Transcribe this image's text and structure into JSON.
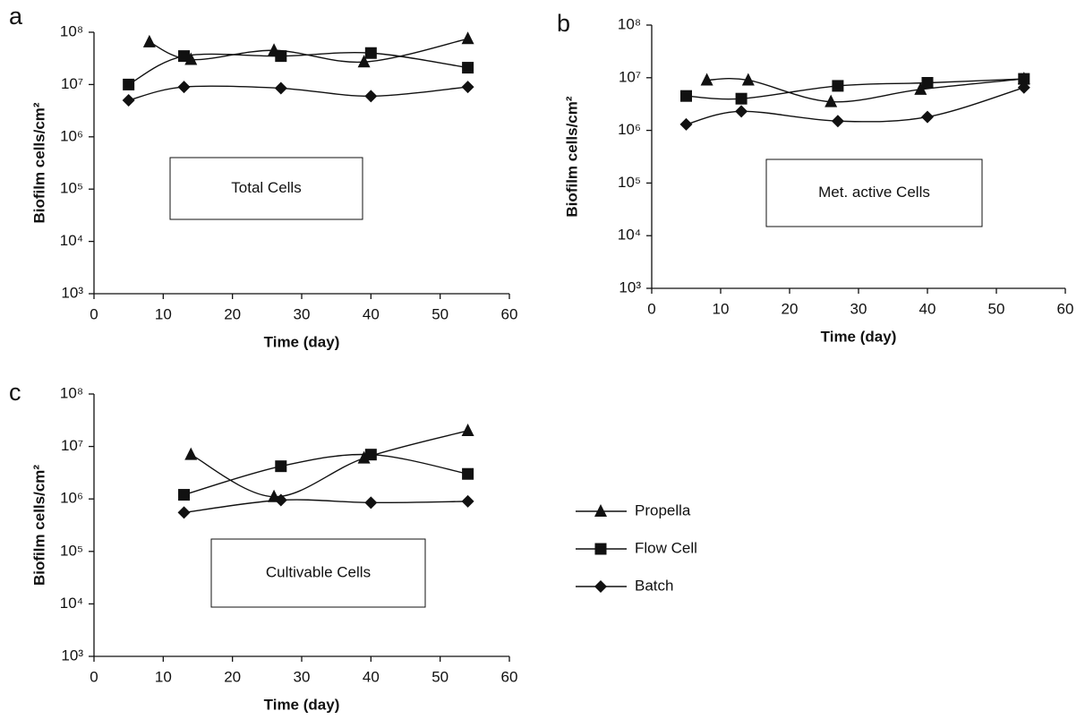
{
  "chart_data": [
    {
      "type": "line",
      "panel_label": "a",
      "annotation": "Total Cells",
      "x_label": "Time (day)",
      "y_label": "Biofilm cells/cm²",
      "y_scale": "log",
      "color": "#111111",
      "xlim": [
        0,
        60
      ],
      "xticks": [
        0,
        10,
        20,
        30,
        40,
        50,
        60
      ],
      "ylim": [
        1000,
        100000000
      ],
      "yticks": [
        {
          "value": 1000,
          "label": "10³"
        },
        {
          "value": 10000,
          "label": "10⁴"
        },
        {
          "value": 100000,
          "label": "10⁵"
        },
        {
          "value": 1000000,
          "label": "10⁶"
        },
        {
          "value": 10000000,
          "label": "10⁷"
        },
        {
          "value": 100000000,
          "label": "10⁸"
        }
      ],
      "series": [
        {
          "marker": "triangle",
          "x": [
            8,
            14,
            26,
            39,
            54
          ],
          "values": [
            65000000,
            30000000,
            45000000,
            27000000,
            75000000
          ]
        },
        {
          "marker": "square",
          "x": [
            5,
            13,
            27,
            40,
            54
          ],
          "values": [
            10000000,
            35000000,
            35000000,
            40000000,
            21000000
          ]
        },
        {
          "marker": "diamond",
          "x": [
            5,
            13,
            27,
            40,
            54
          ],
          "values": [
            5000000,
            9000000,
            8500000,
            6000000,
            9000000
          ]
        }
      ]
    },
    {
      "type": "line",
      "panel_label": "b",
      "annotation": "Met. active Cells",
      "x_label": "Time (day)",
      "y_label": "Biofilm cells/cm²",
      "y_scale": "log",
      "color": "#111111",
      "xlim": [
        0,
        60
      ],
      "xticks": [
        0,
        10,
        20,
        30,
        40,
        50,
        60
      ],
      "ylim": [
        1000,
        100000000
      ],
      "yticks": [
        {
          "value": 1000,
          "label": "10³"
        },
        {
          "value": 10000,
          "label": "10⁴"
        },
        {
          "value": 100000,
          "label": "10⁵"
        },
        {
          "value": 1000000,
          "label": "10⁶"
        },
        {
          "value": 10000000,
          "label": "10⁷"
        },
        {
          "value": 100000000,
          "label": "10⁸"
        }
      ],
      "series": [
        {
          "marker": "triangle",
          "x": [
            8,
            14,
            26,
            39,
            54
          ],
          "values": [
            9000000,
            9000000,
            3500000,
            6000000,
            9500000
          ]
        },
        {
          "marker": "square",
          "x": [
            5,
            13,
            27,
            40,
            54
          ],
          "values": [
            4500000,
            4000000,
            7000000,
            8000000,
            9500000
          ]
        },
        {
          "marker": "diamond",
          "x": [
            5,
            13,
            27,
            40,
            54
          ],
          "values": [
            1300000,
            2300000,
            1500000,
            1800000,
            6500000
          ]
        }
      ]
    },
    {
      "type": "line",
      "panel_label": "c",
      "annotation": "Cultivable Cells",
      "x_label": "Time (day)",
      "y_label": "Biofilm cells/cm²",
      "y_scale": "log",
      "color": "#111111",
      "legend": "right",
      "xlim": [
        0,
        60
      ],
      "xticks": [
        0,
        10,
        20,
        30,
        40,
        50,
        60
      ],
      "ylim": [
        1000,
        100000000
      ],
      "yticks": [
        {
          "value": 1000,
          "label": "10³"
        },
        {
          "value": 10000,
          "label": "10⁴"
        },
        {
          "value": 100000,
          "label": "10⁵"
        },
        {
          "value": 1000000,
          "label": "10⁶"
        },
        {
          "value": 10000000,
          "label": "10⁷"
        },
        {
          "value": 100000000,
          "label": "10⁸"
        }
      ],
      "series": [
        {
          "name": "Propella",
          "marker": "triangle",
          "x": [
            14,
            26,
            39,
            54
          ],
          "values": [
            7000000,
            1100000,
            6000000,
            20000000
          ]
        },
        {
          "name": "Flow Cell",
          "marker": "square",
          "x": [
            13,
            27,
            40,
            54
          ],
          "values": [
            1200000,
            4200000,
            7000000,
            3000000
          ]
        },
        {
          "name": "Batch",
          "marker": "diamond",
          "x": [
            13,
            27,
            40,
            54
          ],
          "values": [
            550000,
            950000,
            850000,
            900000
          ]
        }
      ]
    }
  ]
}
